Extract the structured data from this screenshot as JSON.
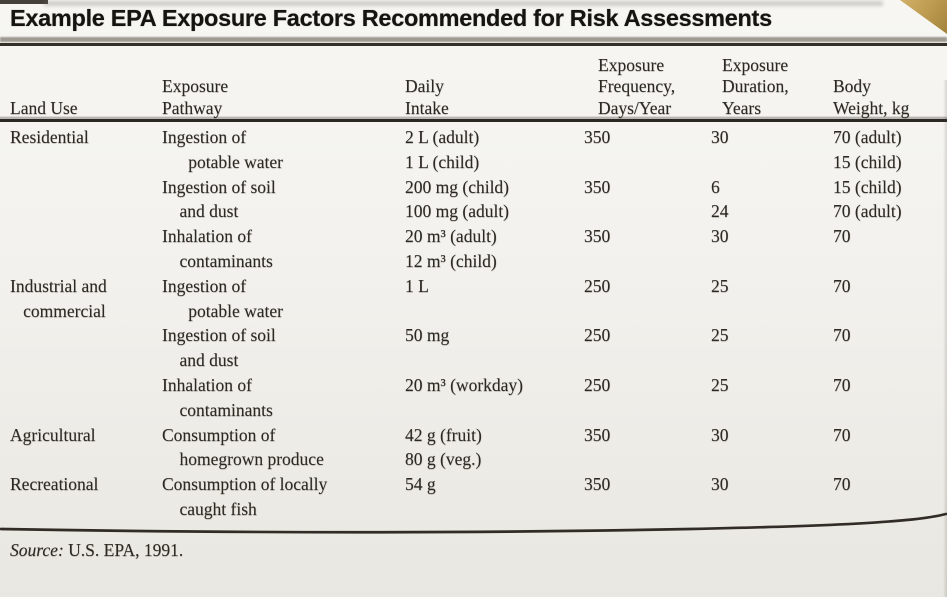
{
  "title": "Example EPA Exposure Factors Recommended for Risk Assessments",
  "table": {
    "columns": [
      {
        "id": "land_use",
        "lines": [
          "Land Use"
        ]
      },
      {
        "id": "pathway",
        "lines": [
          "Exposure",
          "Pathway"
        ]
      },
      {
        "id": "intake",
        "lines": [
          "Daily",
          "Intake"
        ]
      },
      {
        "id": "frequency",
        "lines": [
          "Exposure",
          "Frequency,",
          "Days/Year"
        ]
      },
      {
        "id": "duration",
        "lines": [
          "Exposure",
          "Duration,",
          "Years"
        ]
      },
      {
        "id": "weight",
        "lines": [
          "Body",
          "Weight, kg"
        ]
      }
    ],
    "rows": [
      {
        "land_use": [
          "Residential"
        ],
        "pathway": [
          "Ingestion of",
          "      potable water"
        ],
        "intake": [
          "2 L (adult)",
          "1 L (child)"
        ],
        "frequency": [
          "350"
        ],
        "duration": [
          "30"
        ],
        "weight": [
          "70 (adult)",
          "15 (child)"
        ]
      },
      {
        "land_use": [],
        "pathway": [
          "Ingestion of soil",
          "    and dust"
        ],
        "intake": [
          "200 mg (child)",
          "100 mg (adult)"
        ],
        "frequency": [
          "350"
        ],
        "duration": [
          "6",
          "24"
        ],
        "weight": [
          "15 (child)",
          "70 (adult)"
        ]
      },
      {
        "land_use": [],
        "pathway": [
          "Inhalation of",
          "    contaminants"
        ],
        "intake": [
          "20 m³ (adult)",
          "12 m³ (child)"
        ],
        "frequency": [
          "350"
        ],
        "duration": [
          "30"
        ],
        "weight": [
          "70"
        ]
      },
      {
        "land_use": [
          "Industrial and",
          "   commercial"
        ],
        "pathway": [
          "Ingestion of",
          "      potable water"
        ],
        "intake": [
          "1 L"
        ],
        "frequency": [
          "250"
        ],
        "duration": [
          "25"
        ],
        "weight": [
          "70"
        ]
      },
      {
        "land_use": [],
        "pathway": [
          "Ingestion of soil",
          "    and dust"
        ],
        "intake": [
          "50 mg"
        ],
        "frequency": [
          "250"
        ],
        "duration": [
          "25"
        ],
        "weight": [
          "70"
        ]
      },
      {
        "land_use": [],
        "pathway": [
          "Inhalation of",
          "    contaminants"
        ],
        "intake": [
          "20 m³ (workday)"
        ],
        "frequency": [
          "250"
        ],
        "duration": [
          "25"
        ],
        "weight": [
          "70"
        ]
      },
      {
        "land_use": [
          "Agricultural"
        ],
        "pathway": [
          "Consumption of",
          "    homegrown produce"
        ],
        "intake": [
          "42 g (fruit)",
          "80 g (veg.)"
        ],
        "frequency": [
          "350"
        ],
        "duration": [
          "30"
        ],
        "weight": [
          "70"
        ]
      },
      {
        "land_use": [
          "Recreational"
        ],
        "pathway": [
          "Consumption of locally",
          "    caught fish"
        ],
        "intake": [
          "54 g"
        ],
        "frequency": [
          "350"
        ],
        "duration": [
          "30"
        ],
        "weight": [
          "70"
        ]
      }
    ]
  },
  "source": {
    "label_italic": "Source:",
    "text": " U.S. EPA, 1991."
  },
  "colors": {
    "page_background": "#f3f2ee",
    "ink": "#2c2923",
    "rule": "#2b2822",
    "corner_curl": "#bd9c51"
  }
}
